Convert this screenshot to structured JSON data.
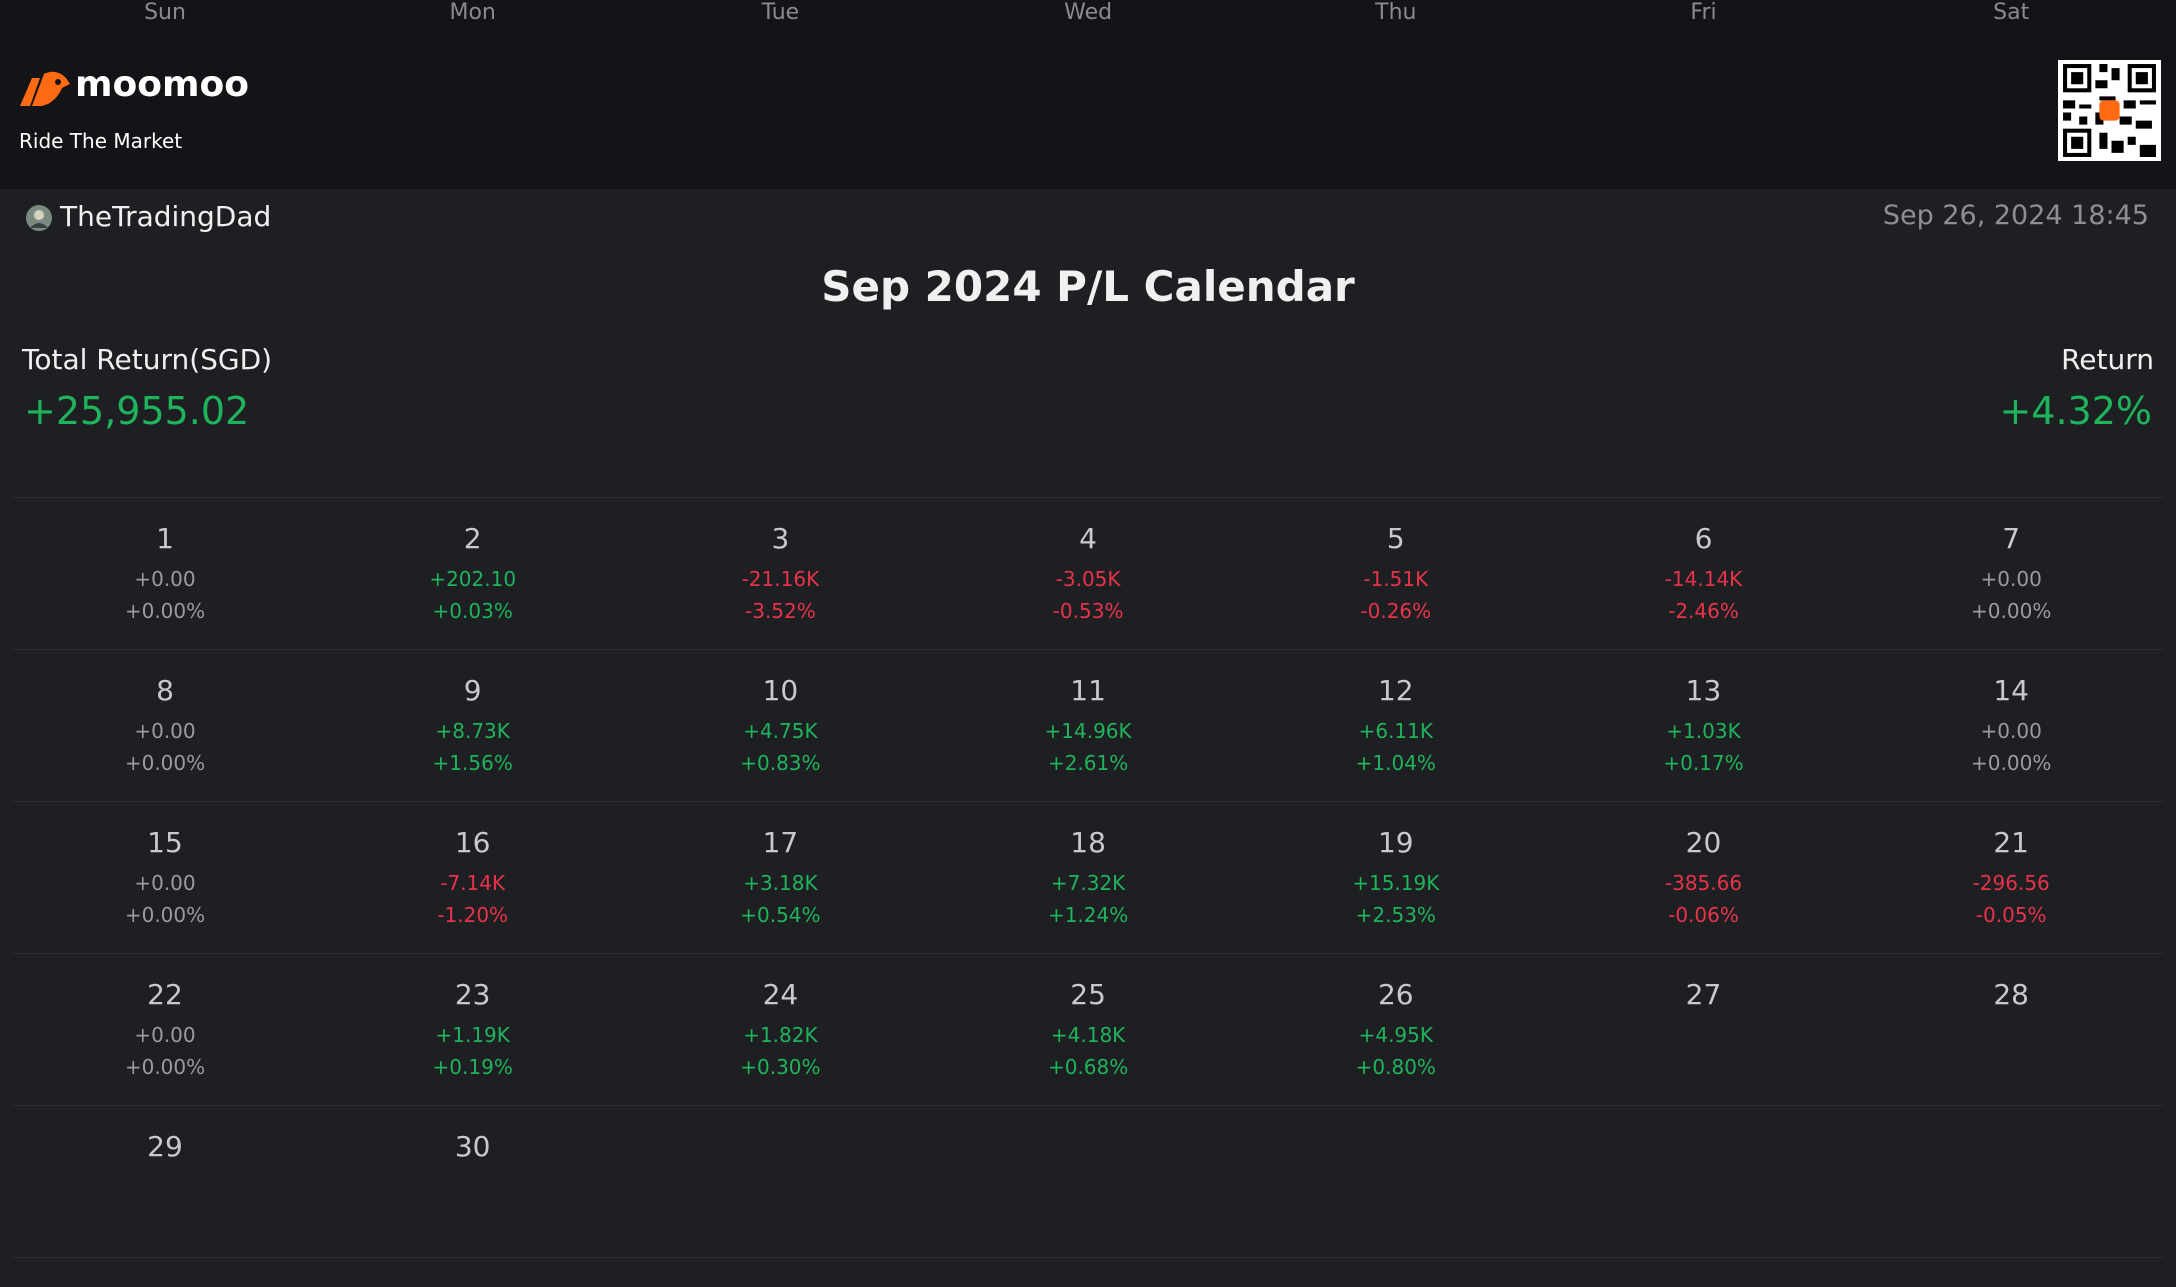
{
  "header": {
    "brand": "moomoo",
    "tagline": "Ride The Market"
  },
  "user": "TheTradingDad",
  "timestamp": "Sep 26, 2024 18:45",
  "title": "Sep 2024 P/L Calendar",
  "summary": {
    "total_label": "Total Return(SGD)",
    "total_value": "+25,955.02",
    "total_color": "#1fb45c",
    "return_label": "Return",
    "return_value": "+4.32%",
    "return_color": "#1fb45c"
  },
  "weekdays": [
    "Sun",
    "Mon",
    "Tue",
    "Wed",
    "Thu",
    "Fri",
    "Sat"
  ],
  "weeks": [
    [
      {
        "day": "1",
        "pl": "+0.00",
        "pct": "+0.00%",
        "color": "#9a9b9f"
      },
      {
        "day": "2",
        "pl": "+202.10",
        "pct": "+0.03%",
        "color": "#1fb45c"
      },
      {
        "day": "3",
        "pl": "-21.16K",
        "pct": "-3.52%",
        "color": "#e8334a"
      },
      {
        "day": "4",
        "pl": "-3.05K",
        "pct": "-0.53%",
        "color": "#e8334a"
      },
      {
        "day": "5",
        "pl": "-1.51K",
        "pct": "-0.26%",
        "color": "#e8334a"
      },
      {
        "day": "6",
        "pl": "-14.14K",
        "pct": "-2.46%",
        "color": "#e8334a"
      },
      {
        "day": "7",
        "pl": "+0.00",
        "pct": "+0.00%",
        "color": "#9a9b9f"
      }
    ],
    [
      {
        "day": "8",
        "pl": "+0.00",
        "pct": "+0.00%",
        "color": "#9a9b9f"
      },
      {
        "day": "9",
        "pl": "+8.73K",
        "pct": "+1.56%",
        "color": "#1fb45c"
      },
      {
        "day": "10",
        "pl": "+4.75K",
        "pct": "+0.83%",
        "color": "#1fb45c"
      },
      {
        "day": "11",
        "pl": "+14.96K",
        "pct": "+2.61%",
        "color": "#1fb45c"
      },
      {
        "day": "12",
        "pl": "+6.11K",
        "pct": "+1.04%",
        "color": "#1fb45c"
      },
      {
        "day": "13",
        "pl": "+1.03K",
        "pct": "+0.17%",
        "color": "#1fb45c"
      },
      {
        "day": "14",
        "pl": "+0.00",
        "pct": "+0.00%",
        "color": "#9a9b9f"
      }
    ],
    [
      {
        "day": "15",
        "pl": "+0.00",
        "pct": "+0.00%",
        "color": "#9a9b9f"
      },
      {
        "day": "16",
        "pl": "-7.14K",
        "pct": "-1.20%",
        "color": "#e8334a"
      },
      {
        "day": "17",
        "pl": "+3.18K",
        "pct": "+0.54%",
        "color": "#1fb45c"
      },
      {
        "day": "18",
        "pl": "+7.32K",
        "pct": "+1.24%",
        "color": "#1fb45c"
      },
      {
        "day": "19",
        "pl": "+15.19K",
        "pct": "+2.53%",
        "color": "#1fb45c"
      },
      {
        "day": "20",
        "pl": "-385.66",
        "pct": "-0.06%",
        "color": "#e8334a"
      },
      {
        "day": "21",
        "pl": "-296.56",
        "pct": "-0.05%",
        "color": "#e8334a"
      }
    ],
    [
      {
        "day": "22",
        "pl": "+0.00",
        "pct": "+0.00%",
        "color": "#9a9b9f"
      },
      {
        "day": "23",
        "pl": "+1.19K",
        "pct": "+0.19%",
        "color": "#1fb45c"
      },
      {
        "day": "24",
        "pl": "+1.82K",
        "pct": "+0.30%",
        "color": "#1fb45c"
      },
      {
        "day": "25",
        "pl": "+4.18K",
        "pct": "+0.68%",
        "color": "#1fb45c"
      },
      {
        "day": "26",
        "pl": "+4.95K",
        "pct": "+0.80%",
        "color": "#1fb45c"
      },
      {
        "day": "27"
      },
      {
        "day": "28"
      }
    ],
    [
      {
        "day": "29"
      },
      {
        "day": "30"
      }
    ]
  ]
}
